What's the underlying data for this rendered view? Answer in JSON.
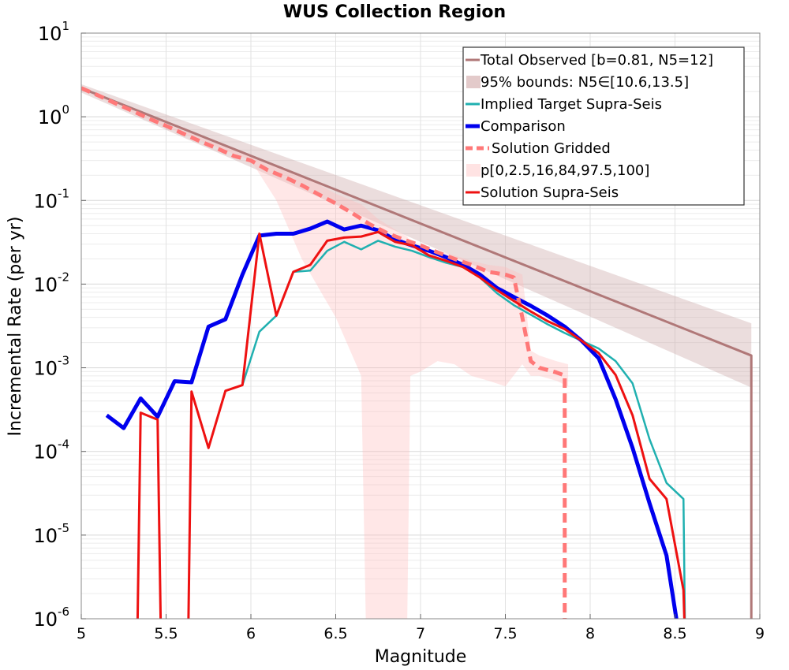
{
  "chart_data": {
    "type": "line",
    "title": "WUS Collection Region",
    "xlabel": "Magnitude",
    "ylabel": "Incremental Rate (per yr)",
    "xlim": [
      5,
      9
    ],
    "ylim_log10": [
      -6,
      1
    ],
    "y_scale": "log",
    "grid": true,
    "legend_position": "top-right",
    "x_ticks": [
      5,
      5.5,
      6,
      6.5,
      7,
      7.5,
      8,
      8.5,
      9
    ],
    "x_tick_labels": [
      "5",
      "5.5",
      "6",
      "6.5",
      "7",
      "7.5",
      "8",
      "8.5",
      "9"
    ],
    "y_ticks": [
      {
        "base": "10",
        "exp": "1",
        "value": 10
      },
      {
        "base": "10",
        "exp": "0",
        "value": 1
      },
      {
        "base": "10",
        "exp": "-1",
        "value": 0.1
      },
      {
        "base": "10",
        "exp": "-2",
        "value": 0.01
      },
      {
        "base": "10",
        "exp": "-3",
        "value": 0.001
      },
      {
        "base": "10",
        "exp": "-4",
        "value": 0.0001
      },
      {
        "base": "10",
        "exp": "-5",
        "value": 1e-05
      },
      {
        "base": "10",
        "exp": "-6",
        "value": 1e-06
      }
    ],
    "series": [
      {
        "name": "Total Observed [b=0.81, N5=12]",
        "color": "#b07878",
        "width": 3,
        "dash": "",
        "x": [
          5.0,
          8.95,
          8.95
        ],
        "y": [
          2.2,
          0.0014,
          5e-07
        ]
      },
      {
        "name": "Implied Target Supra-Seis",
        "color": "#20b0b0",
        "width": 2.5,
        "dash": "",
        "x": [
          5.95,
          6.05,
          6.15,
          6.25,
          6.35,
          6.45,
          6.55,
          6.65,
          6.75,
          6.85,
          6.95,
          7.05,
          7.15,
          7.25,
          7.35,
          7.45,
          7.55,
          7.65,
          7.75,
          7.85,
          7.95,
          8.05,
          8.15,
          8.25,
          8.35,
          8.45,
          8.55,
          8.56
        ],
        "y": [
          0.00062,
          0.0027,
          0.0042,
          0.014,
          0.0145,
          0.025,
          0.032,
          0.026,
          0.033,
          0.028,
          0.025,
          0.021,
          0.018,
          0.016,
          0.012,
          0.0078,
          0.0056,
          0.0043,
          0.0033,
          0.0026,
          0.0021,
          0.0017,
          0.0012,
          0.00065,
          0.00014,
          4.2e-05,
          2.7e-05,
          5e-07
        ]
      },
      {
        "name": "Comparison",
        "color": "#0000ee",
        "width": 5,
        "dash": "",
        "x": [
          5.15,
          5.25,
          5.35,
          5.45,
          5.55,
          5.65,
          5.75,
          5.85,
          5.95,
          6.05,
          6.15,
          6.25,
          6.35,
          6.45,
          6.55,
          6.65,
          6.75,
          6.85,
          6.95,
          7.05,
          7.15,
          7.25,
          7.35,
          7.45,
          7.55,
          7.65,
          7.75,
          7.85,
          7.95,
          8.05,
          8.15,
          8.25,
          8.35,
          8.45,
          8.52
        ],
        "y": [
          0.00027,
          0.00019,
          0.00043,
          0.00026,
          0.00069,
          0.00067,
          0.0031,
          0.0038,
          0.013,
          0.038,
          0.04,
          0.04,
          0.046,
          0.056,
          0.045,
          0.05,
          0.044,
          0.034,
          0.029,
          0.025,
          0.021,
          0.017,
          0.013,
          0.009,
          0.007,
          0.0055,
          0.0042,
          0.0031,
          0.0021,
          0.0013,
          0.00042,
          0.00011,
          2.4e-05,
          5.7e-06,
          7e-07
        ]
      },
      {
        "name": "Solution Gridded",
        "color": "#ff7878",
        "width": 5,
        "dash": "12,7",
        "x": [
          5.0,
          5.1,
          5.2,
          5.3,
          5.4,
          5.5,
          5.6,
          5.7,
          5.8,
          5.9,
          6.0,
          6.1,
          6.2,
          6.3,
          6.4,
          6.5,
          6.6,
          6.7,
          6.8,
          6.9,
          7.0,
          7.1,
          7.2,
          7.3,
          7.4,
          7.5,
          7.55,
          7.6,
          7.65,
          7.7,
          7.8,
          7.85,
          7.85
        ],
        "y": [
          2.2,
          1.8,
          1.45,
          1.18,
          0.95,
          0.78,
          0.63,
          0.51,
          0.42,
          0.34,
          0.3,
          0.23,
          0.19,
          0.152,
          0.118,
          0.092,
          0.07,
          0.052,
          0.041,
          0.034,
          0.029,
          0.024,
          0.02,
          0.017,
          0.014,
          0.013,
          0.012,
          0.004,
          0.0012,
          0.001,
          0.00088,
          0.00081,
          5e-07
        ]
      },
      {
        "name": "Solution Supra-Seis",
        "color": "#ee1111",
        "width": 3,
        "dash": "",
        "x": [
          5.33,
          5.35,
          5.45,
          5.47,
          5.63,
          5.65,
          5.75,
          5.85,
          5.95,
          6.05,
          6.15,
          6.25,
          6.35,
          6.45,
          6.55,
          6.65,
          6.75,
          6.85,
          6.95,
          7.05,
          7.15,
          7.25,
          7.35,
          7.45,
          7.55,
          7.65,
          7.75,
          7.85,
          7.95,
          8.05,
          8.15,
          8.25,
          8.35,
          8.45,
          8.55,
          8.56
        ],
        "y": [
          5e-07,
          0.00029,
          0.00024,
          5e-07,
          5e-07,
          0.00052,
          0.00011,
          0.00053,
          0.00062,
          0.04,
          0.0042,
          0.014,
          0.017,
          0.033,
          0.036,
          0.037,
          0.042,
          0.032,
          0.029,
          0.022,
          0.019,
          0.016,
          0.012,
          0.0085,
          0.0063,
          0.0047,
          0.0036,
          0.0029,
          0.0021,
          0.0015,
          0.00082,
          0.00027,
          4.7e-05,
          2.7e-05,
          2.2e-06,
          5e-07
        ]
      }
    ],
    "bands": [
      {
        "name": "95% bounds: N5∈[10.6,13.5]",
        "color": "#ccaaaa",
        "opacity": 0.4,
        "x": [
          5.0,
          8.95
        ],
        "lower": [
          1.95,
          0.00058
        ],
        "upper": [
          2.45,
          0.0034
        ]
      },
      {
        "name": "p[0,2.5,16,84,97.5,100]",
        "color": "#ffbbbb",
        "opacity": 0.35,
        "x": [
          5.0,
          5.5,
          6.0,
          6.15,
          6.3,
          6.5,
          6.65,
          6.68,
          6.75,
          6.85,
          6.92,
          6.94,
          7.0,
          7.1,
          7.2,
          7.3,
          7.4,
          7.5,
          7.6,
          7.65,
          7.7,
          7.8,
          7.87
        ],
        "lower": [
          2.1,
          0.75,
          0.3,
          0.1,
          0.02,
          0.004,
          0.0008,
          5e-07,
          5e-07,
          5e-07,
          5e-07,
          0.0008,
          0.0009,
          0.0012,
          0.0011,
          0.0008,
          0.0007,
          0.0006,
          0.0011,
          0.0008,
          0.0008,
          0.0007,
          0.0006
        ],
        "upper": [
          2.3,
          0.82,
          0.33,
          0.26,
          0.2,
          0.12,
          0.09,
          0.08,
          0.06,
          0.045,
          0.037,
          0.033,
          0.029,
          0.025,
          0.022,
          0.019,
          0.017,
          0.016,
          0.013,
          0.0016,
          0.0014,
          0.0012,
          0.0011
        ]
      }
    ],
    "legend": [
      {
        "label": "Total Observed [b=0.81, N5=12]",
        "kind": "line",
        "color": "#b07878",
        "width": 3,
        "dash": ""
      },
      {
        "label": "95% bounds: N5∈[10.6,13.5]",
        "kind": "band",
        "color": "#e3caca"
      },
      {
        "label": "Implied Target Supra-Seis",
        "kind": "line",
        "color": "#20b0b0",
        "width": 3,
        "dash": ""
      },
      {
        "label": "Comparison",
        "kind": "line",
        "color": "#0000ee",
        "width": 5,
        "dash": ""
      },
      {
        "label": "Solution Gridded",
        "kind": "line",
        "color": "#ff7878",
        "width": 5,
        "dash": "9,5"
      },
      {
        "label": "p[0,2.5,16,84,97.5,100]",
        "kind": "band",
        "color": "#ffe3e3"
      },
      {
        "label": "Solution Supra-Seis",
        "kind": "line",
        "color": "#ee1111",
        "width": 3,
        "dash": ""
      }
    ]
  }
}
